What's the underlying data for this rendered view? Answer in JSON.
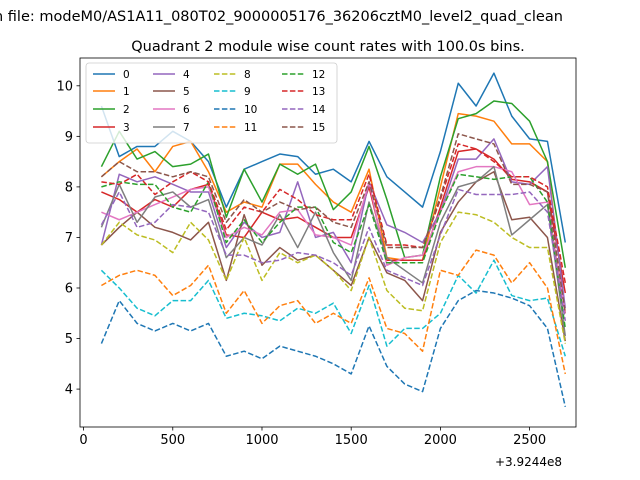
{
  "chart_data": {
    "type": "line",
    "suptitle": "n file: modeM0/AS1A11_080T02_9000005176_36206cztM0_level2_quad_clean",
    "title": "Quadrant 2 module wise count rates with 100.0s bins.",
    "xlabel": "",
    "ylabel": "",
    "x_offset_label": "+3.9244e8",
    "xlim": [
      -20,
      2760
    ],
    "ylim": [
      3.25,
      10.55
    ],
    "xticks": [
      0,
      500,
      1000,
      1500,
      2000,
      2500
    ],
    "yticks": [
      4,
      5,
      6,
      7,
      8,
      9,
      10
    ],
    "x": [
      100,
      200,
      300,
      400,
      500,
      600,
      700,
      800,
      900,
      1000,
      1100,
      1200,
      1300,
      1400,
      1500,
      1600,
      1700,
      1800,
      1900,
      2000,
      2100,
      2200,
      2300,
      2400,
      2500,
      2600,
      2700
    ],
    "legend_position": "upper-left",
    "legend_ncol": 4,
    "series": [
      {
        "name": "0",
        "color": "#1f77b4",
        "dash": "solid",
        "values": [
          9.6,
          8.6,
          8.8,
          8.8,
          9.1,
          8.9,
          8.5,
          7.6,
          8.35,
          8.5,
          8.65,
          8.6,
          8.25,
          8.35,
          8.1,
          8.9,
          8.2,
          7.9,
          7.6,
          8.7,
          10.05,
          9.6,
          10.25,
          9.4,
          8.95,
          8.9,
          6.9
        ]
      },
      {
        "name": "1",
        "color": "#ff7f0e",
        "dash": "solid",
        "values": [
          8.2,
          8.5,
          8.75,
          8.3,
          8.8,
          8.9,
          8.3,
          7.5,
          7.7,
          7.6,
          8.45,
          8.45,
          8.05,
          7.7,
          7.5,
          8.35,
          6.6,
          6.55,
          6.55,
          8.0,
          9.45,
          9.4,
          9.3,
          8.85,
          8.85,
          8.5,
          5.5
        ]
      },
      {
        "name": "2",
        "color": "#2ca02c",
        "dash": "solid",
        "values": [
          8.4,
          9.1,
          8.55,
          8.7,
          8.4,
          8.45,
          8.65,
          7.4,
          8.35,
          7.7,
          8.45,
          8.25,
          8.45,
          7.55,
          7.9,
          8.8,
          7.75,
          6.6,
          6.65,
          8.2,
          9.35,
          9.45,
          9.7,
          9.65,
          9.3,
          8.5,
          6.4
        ]
      },
      {
        "name": "3",
        "color": "#d62728",
        "dash": "solid",
        "values": [
          7.9,
          7.75,
          7.5,
          7.75,
          7.6,
          7.95,
          8.05,
          7.05,
          7.0,
          7.5,
          7.35,
          7.4,
          7.2,
          7.0,
          7.0,
          8.0,
          6.55,
          6.55,
          6.55,
          7.6,
          8.7,
          8.75,
          8.55,
          8.15,
          8.1,
          7.9,
          5.9
        ]
      },
      {
        "name": "4",
        "color": "#9467bd",
        "dash": "solid",
        "values": [
          6.85,
          8.25,
          8.1,
          8.2,
          8.05,
          7.9,
          7.9,
          6.8,
          7.3,
          7.0,
          7.1,
          8.1,
          7.0,
          7.1,
          6.5,
          8.1,
          7.25,
          7.1,
          6.9,
          7.5,
          8.55,
          8.55,
          8.95,
          8.1,
          8.05,
          8.4,
          5.6
        ]
      },
      {
        "name": "5",
        "color": "#8c564b",
        "dash": "solid",
        "values": [
          6.85,
          7.2,
          7.5,
          7.2,
          7.1,
          6.95,
          7.3,
          6.15,
          7.45,
          6.45,
          6.8,
          6.55,
          6.65,
          6.35,
          6.05,
          7.0,
          6.3,
          6.15,
          5.75,
          7.1,
          7.7,
          8.1,
          8.3,
          7.35,
          7.4,
          7.0,
          4.95
        ]
      },
      {
        "name": "6",
        "color": "#e377c2",
        "dash": "solid",
        "values": [
          7.5,
          7.35,
          7.5,
          7.65,
          7.8,
          7.95,
          8.0,
          7.0,
          7.2,
          7.05,
          7.5,
          7.55,
          7.05,
          7.0,
          6.85,
          8.1,
          6.45,
          6.6,
          6.65,
          7.5,
          8.3,
          8.4,
          8.4,
          8.3,
          7.65,
          7.7,
          5.5
        ]
      },
      {
        "name": "7",
        "color": "#7f7f7f",
        "dash": "solid",
        "values": [
          7.2,
          8.05,
          7.3,
          7.8,
          7.9,
          7.6,
          7.75,
          6.6,
          7.0,
          6.85,
          7.45,
          6.8,
          7.5,
          6.7,
          6.15,
          7.7,
          6.6,
          6.35,
          6.1,
          7.3,
          8.0,
          8.1,
          8.4,
          7.05,
          7.35,
          7.65,
          5.05
        ]
      },
      {
        "name": "8",
        "color": "#bcbd22",
        "dash": "dashed",
        "values": [
          6.85,
          7.3,
          7.05,
          6.95,
          6.7,
          7.3,
          6.95,
          6.15,
          7.0,
          6.15,
          6.7,
          6.5,
          6.65,
          6.35,
          5.95,
          7.0,
          5.95,
          5.6,
          5.55,
          6.9,
          7.5,
          7.45,
          7.3,
          7.0,
          6.8,
          6.8,
          4.9
        ]
      },
      {
        "name": "9",
        "color": "#17becf",
        "dash": "dashed",
        "values": [
          6.35,
          6.0,
          5.6,
          5.45,
          5.75,
          5.75,
          6.15,
          5.4,
          5.5,
          5.45,
          5.35,
          5.6,
          5.5,
          5.7,
          5.1,
          6.05,
          4.85,
          5.2,
          5.2,
          5.5,
          6.25,
          5.9,
          6.55,
          5.85,
          5.75,
          5.8,
          4.65
        ]
      },
      {
        "name": "10",
        "color": "#1f77b4",
        "dash": "dashed",
        "values": [
          4.9,
          5.75,
          5.3,
          5.15,
          5.3,
          5.15,
          5.3,
          4.65,
          4.75,
          4.6,
          4.85,
          4.75,
          4.65,
          4.5,
          4.3,
          5.25,
          4.45,
          4.1,
          3.95,
          5.2,
          5.75,
          5.95,
          5.9,
          5.8,
          5.65,
          5.2,
          3.65
        ]
      },
      {
        "name": "11",
        "color": "#ff7f0e",
        "dash": "dashed",
        "values": [
          6.05,
          6.25,
          6.35,
          6.25,
          5.85,
          6.05,
          6.45,
          5.5,
          5.95,
          5.3,
          5.65,
          5.75,
          5.3,
          5.5,
          5.3,
          6.2,
          5.2,
          5.1,
          4.75,
          6.35,
          6.25,
          6.75,
          6.65,
          6.1,
          6.5,
          6.0,
          4.3
        ]
      },
      {
        "name": "12",
        "color": "#2ca02c",
        "dash": "dashed",
        "values": [
          8.0,
          8.1,
          8.05,
          8.05,
          7.6,
          7.5,
          8.1,
          6.9,
          7.35,
          6.9,
          7.3,
          7.6,
          7.6,
          6.9,
          6.7,
          7.65,
          6.5,
          6.5,
          6.5,
          7.5,
          8.25,
          8.2,
          8.15,
          8.2,
          8.2,
          7.7,
          5.2
        ]
      },
      {
        "name": "13",
        "color": "#d62728",
        "dash": "dashed",
        "values": [
          8.1,
          8.05,
          8.25,
          7.85,
          8.1,
          8.3,
          8.1,
          7.15,
          7.6,
          7.5,
          7.95,
          7.75,
          7.45,
          7.35,
          7.35,
          8.25,
          6.85,
          6.85,
          6.8,
          7.75,
          8.85,
          8.75,
          8.5,
          8.2,
          8.2,
          8.0,
          6.1
        ]
      },
      {
        "name": "14",
        "color": "#9467bd",
        "dash": "dashed",
        "values": [
          7.25,
          7.9,
          7.2,
          7.3,
          7.65,
          7.6,
          7.5,
          6.65,
          6.65,
          6.5,
          6.55,
          6.7,
          6.65,
          6.5,
          6.25,
          7.2,
          6.35,
          6.2,
          6.05,
          7.05,
          7.95,
          7.85,
          7.85,
          7.85,
          7.9,
          7.5,
          5.35
        ]
      },
      {
        "name": "15",
        "color": "#8c564b",
        "dash": "dashed",
        "values": [
          8.2,
          8.5,
          8.3,
          8.3,
          8.2,
          8.3,
          8.2,
          7.3,
          7.75,
          7.5,
          7.7,
          7.55,
          7.6,
          7.3,
          7.2,
          8.1,
          6.8,
          6.8,
          6.8,
          7.8,
          9.05,
          8.95,
          8.85,
          8.05,
          8.05,
          7.9,
          5.5
        ]
      }
    ]
  }
}
